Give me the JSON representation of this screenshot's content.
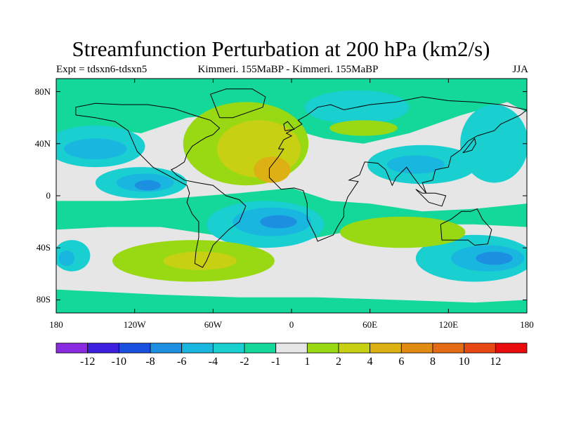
{
  "title": "Streamfunction Perturbation at 200 hPa (km2/s)",
  "subtitle_left": "Expt = tdsxn6-tdsxn5",
  "subtitle_center": "Kimmeri. 155MaBP - Kimmeri. 155MaBP",
  "subtitle_right": "JJA",
  "axes": {
    "y_ticks": [
      {
        "label": "80N",
        "lat": 80
      },
      {
        "label": "40N",
        "lat": 40
      },
      {
        "label": "0",
        "lat": 0
      },
      {
        "label": "40S",
        "lat": -40
      },
      {
        "label": "80S",
        "lat": -80
      }
    ],
    "x_ticks": [
      {
        "label": "180",
        "lon": -180
      },
      {
        "label": "120W",
        "lon": -120
      },
      {
        "label": "60W",
        "lon": -60
      },
      {
        "label": "0",
        "lon": 0
      },
      {
        "label": "60E",
        "lon": 60
      },
      {
        "label": "120E",
        "lon": 120
      },
      {
        "label": "180",
        "lon": 180
      }
    ],
    "lon_range": [
      -180,
      180
    ],
    "lat_range": [
      -90,
      90
    ]
  },
  "colorbar": {
    "colors": [
      "#8a2be2",
      "#3d1fe0",
      "#1a50e0",
      "#1d8fe0",
      "#19b7e0",
      "#19cfcf",
      "#14d79a",
      "#e6e6e6",
      "#99d914",
      "#c8d014",
      "#ddb014",
      "#e08c14",
      "#e46a14",
      "#e84814",
      "#e80c0c"
    ],
    "labels": [
      "-12",
      "-10",
      "-8",
      "-6",
      "-4",
      "-2",
      "-1",
      "1",
      "2",
      "4",
      "6",
      "8",
      "10",
      "12"
    ]
  },
  "map_regions": [
    {
      "level": "-2",
      "lon": -150,
      "lat": 38,
      "rx": 38,
      "ry": 16
    },
    {
      "level": "-4",
      "lon": -150,
      "lat": 36,
      "rx": 24,
      "ry": 8
    },
    {
      "level": "-2",
      "lon": -115,
      "lat": 10,
      "rx": 35,
      "ry": 12
    },
    {
      "level": "-4",
      "lon": -112,
      "lat": 10,
      "rx": 22,
      "ry": 7
    },
    {
      "level": "-6",
      "lon": -110,
      "lat": 8,
      "rx": 10,
      "ry": 4
    },
    {
      "level": "-2",
      "lon": -168,
      "lat": -46,
      "rx": 14,
      "ry": 12
    },
    {
      "level": "-4",
      "lon": -172,
      "lat": -48,
      "rx": 6,
      "ry": 6
    },
    {
      "level": "-2",
      "lon": -20,
      "lat": -22,
      "rx": 45,
      "ry": 18
    },
    {
      "level": "-4",
      "lon": -15,
      "lat": -20,
      "rx": 30,
      "ry": 11
    },
    {
      "level": "-6",
      "lon": -10,
      "lat": -20,
      "rx": 14,
      "ry": 5
    },
    {
      "level": "-2",
      "lon": 50,
      "lat": 68,
      "rx": 40,
      "ry": 13
    },
    {
      "level": "-2",
      "lon": 100,
      "lat": 24,
      "rx": 42,
      "ry": 15
    },
    {
      "level": "-4",
      "lon": 95,
      "lat": 24,
      "rx": 22,
      "ry": 7
    },
    {
      "level": "-2",
      "lon": 155,
      "lat": 40,
      "rx": 26,
      "ry": 30
    },
    {
      "level": "-2",
      "lon": 140,
      "lat": -48,
      "rx": 45,
      "ry": 18
    },
    {
      "level": "-4",
      "lon": 150,
      "lat": -48,
      "rx": 28,
      "ry": 10
    },
    {
      "level": "-6",
      "lon": 155,
      "lat": -48,
      "rx": 14,
      "ry": 5
    }
  ],
  "map_bands": [
    {
      "level": "1",
      "points": [
        [
          -180,
          42
        ],
        [
          -150,
          52
        ],
        [
          -115,
          48
        ],
        [
          -80,
          60
        ],
        [
          -40,
          64
        ],
        [
          -10,
          54
        ],
        [
          25,
          44
        ],
        [
          55,
          40
        ],
        [
          90,
          48
        ],
        [
          130,
          62
        ],
        [
          165,
          72
        ],
        [
          180,
          64
        ],
        [
          180,
          -6
        ],
        [
          140,
          -10
        ],
        [
          100,
          -12
        ],
        [
          60,
          -6
        ],
        [
          30,
          -4
        ],
        [
          0,
          6
        ],
        [
          -40,
          2
        ],
        [
          -90,
          -2
        ],
        [
          -130,
          -4
        ],
        [
          -180,
          -4
        ]
      ]
    },
    {
      "level": "1",
      "points": [
        [
          -180,
          -26
        ],
        [
          -140,
          -24
        ],
        [
          -100,
          -24
        ],
        [
          -60,
          -30
        ],
        [
          -20,
          -38
        ],
        [
          20,
          -32
        ],
        [
          60,
          -24
        ],
        [
          100,
          -22
        ],
        [
          140,
          -22
        ],
        [
          180,
          -24
        ],
        [
          180,
          -80
        ],
        [
          140,
          -82
        ],
        [
          80,
          -80
        ],
        [
          20,
          -78
        ],
        [
          -40,
          -78
        ],
        [
          -100,
          -76
        ],
        [
          -140,
          -74
        ],
        [
          -180,
          -72
        ]
      ]
    }
  ],
  "map_warm": [
    {
      "level": "2",
      "lon": -35,
      "lat": 40,
      "rx": 48,
      "ry": 32
    },
    {
      "level": "4",
      "lon": -25,
      "lat": 36,
      "rx": 32,
      "ry": 22
    },
    {
      "level": "6",
      "lon": -15,
      "lat": 20,
      "rx": 14,
      "ry": 10
    },
    {
      "level": "2",
      "lon": -75,
      "lat": -50,
      "rx": 62,
      "ry": 16
    },
    {
      "level": "4",
      "lon": -70,
      "lat": -50,
      "rx": 28,
      "ry": 7
    },
    {
      "level": "2",
      "lon": 85,
      "lat": -28,
      "rx": 48,
      "ry": 12
    },
    {
      "level": "2",
      "lon": 55,
      "lat": 52,
      "rx": 26,
      "ry": 6
    }
  ],
  "coastlines": [
    [
      [
        -165,
        62
      ],
      [
        -150,
        60
      ],
      [
        -135,
        57
      ],
      [
        -125,
        50
      ],
      [
        -118,
        34
      ],
      [
        -106,
        22
      ],
      [
        -95,
        16
      ],
      [
        -84,
        10
      ],
      [
        -80,
        8
      ],
      [
        -78,
        2
      ],
      [
        -80,
        -5
      ],
      [
        -76,
        -14
      ],
      [
        -71,
        -20
      ],
      [
        -71,
        -32
      ],
      [
        -73,
        -42
      ],
      [
        -74,
        -52
      ],
      [
        -68,
        -55
      ],
      [
        -65,
        -50
      ],
      [
        -60,
        -38
      ],
      [
        -48,
        -26
      ],
      [
        -40,
        -20
      ],
      [
        -35,
        -8
      ],
      [
        -40,
        -3
      ],
      [
        -50,
        0
      ],
      [
        -60,
        8
      ],
      [
        -72,
        10
      ],
      [
        -82,
        12
      ],
      [
        -88,
        16
      ],
      [
        -92,
        20
      ],
      [
        -88,
        22
      ],
      [
        -82,
        26
      ],
      [
        -80,
        32
      ],
      [
        -76,
        38
      ],
      [
        -70,
        42
      ],
      [
        -65,
        45
      ],
      [
        -60,
        47
      ],
      [
        -55,
        52
      ],
      [
        -62,
        58
      ],
      [
        -75,
        62
      ],
      [
        -90,
        67
      ],
      [
        -110,
        70
      ],
      [
        -130,
        70
      ],
      [
        -150,
        71
      ],
      [
        -165,
        68
      ],
      [
        -165,
        62
      ]
    ],
    [
      [
        -55,
        60
      ],
      [
        -45,
        60
      ],
      [
        -22,
        68
      ],
      [
        -20,
        76
      ],
      [
        -30,
        82
      ],
      [
        -50,
        82
      ],
      [
        -62,
        78
      ],
      [
        -55,
        60
      ]
    ],
    [
      [
        -10,
        36
      ],
      [
        -6,
        43
      ],
      [
        0,
        46
      ],
      [
        -4,
        48
      ],
      [
        3,
        52
      ],
      [
        8,
        55
      ],
      [
        5,
        58
      ],
      [
        12,
        62
      ],
      [
        20,
        68
      ],
      [
        30,
        70
      ],
      [
        40,
        66
      ],
      [
        60,
        70
      ],
      [
        80,
        72
      ],
      [
        100,
        76
      ],
      [
        120,
        73
      ],
      [
        140,
        72
      ],
      [
        160,
        70
      ],
      [
        180,
        66
      ],
      [
        175,
        62
      ],
      [
        160,
        55
      ],
      [
        155,
        50
      ],
      [
        142,
        46
      ],
      [
        135,
        42
      ],
      [
        129,
        35
      ],
      [
        122,
        30
      ],
      [
        120,
        22
      ],
      [
        110,
        20
      ],
      [
        108,
        12
      ],
      [
        100,
        10
      ],
      [
        103,
        2
      ],
      [
        98,
        8
      ],
      [
        92,
        16
      ],
      [
        88,
        22
      ],
      [
        80,
        14
      ],
      [
        77,
        8
      ],
      [
        72,
        20
      ],
      [
        66,
        25
      ],
      [
        56,
        26
      ],
      [
        52,
        16
      ],
      [
        44,
        12
      ],
      [
        51,
        11
      ],
      [
        43,
        -1
      ],
      [
        40,
        -10
      ],
      [
        40,
        -16
      ],
      [
        35,
        -24
      ],
      [
        32,
        -30
      ],
      [
        20,
        -35
      ],
      [
        18,
        -30
      ],
      [
        12,
        -18
      ],
      [
        12,
        -6
      ],
      [
        9,
        4
      ],
      [
        2,
        6
      ],
      [
        -8,
        5
      ],
      [
        -17,
        14
      ],
      [
        -17,
        21
      ],
      [
        -10,
        30
      ],
      [
        -6,
        36
      ],
      [
        -10,
        36
      ]
    ],
    [
      [
        114,
        -22
      ],
      [
        122,
        -18
      ],
      [
        130,
        -12
      ],
      [
        137,
        -12
      ],
      [
        142,
        -10
      ],
      [
        146,
        -18
      ],
      [
        153,
        -26
      ],
      [
        150,
        -37
      ],
      [
        140,
        -38
      ],
      [
        135,
        -34
      ],
      [
        124,
        -34
      ],
      [
        115,
        -34
      ],
      [
        114,
        -22
      ]
    ],
    [
      [
        -5,
        50
      ],
      [
        2,
        51
      ],
      [
        -3,
        57
      ],
      [
        -6,
        55
      ],
      [
        -5,
        50
      ]
    ],
    [
      [
        95,
        5
      ],
      [
        105,
        -5
      ],
      [
        115,
        -8
      ],
      [
        118,
        0
      ],
      [
        110,
        2
      ],
      [
        100,
        2
      ],
      [
        95,
        5
      ]
    ],
    [
      [
        131,
        33
      ],
      [
        138,
        35
      ],
      [
        141,
        40
      ],
      [
        140,
        44
      ],
      [
        133,
        35
      ],
      [
        131,
        33
      ]
    ]
  ]
}
